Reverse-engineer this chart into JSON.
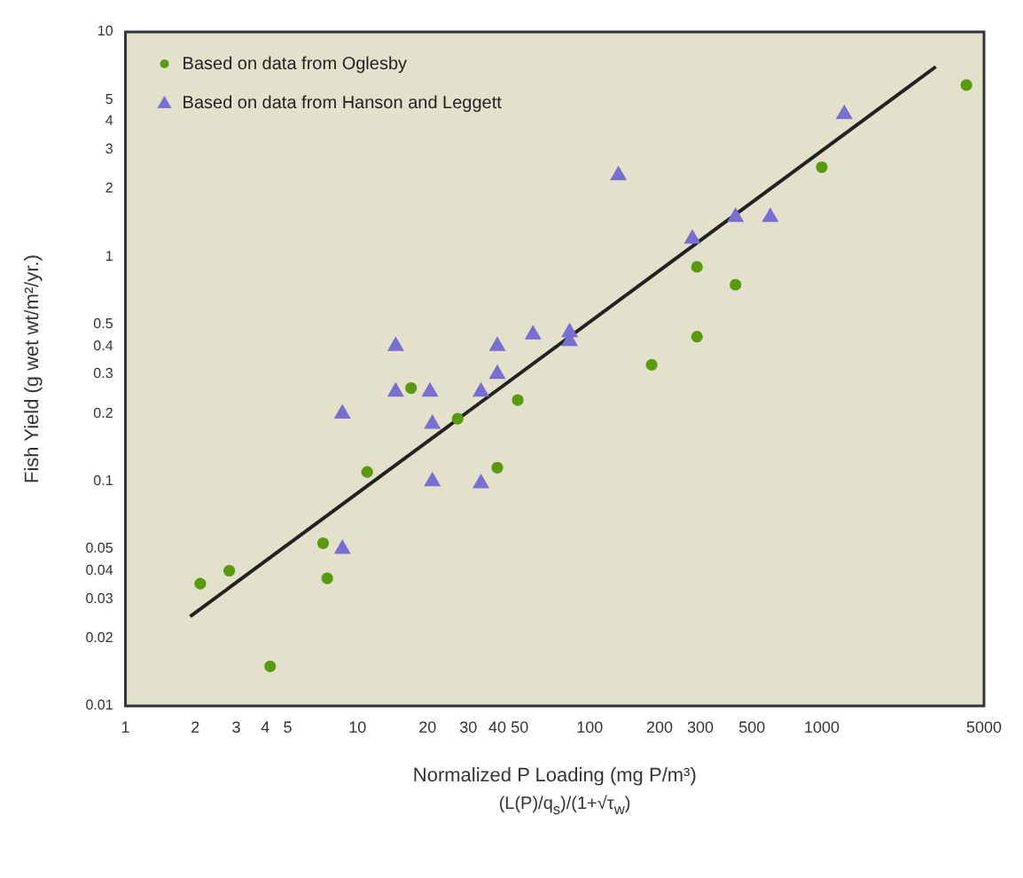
{
  "chart_data": {
    "type": "scatter",
    "ylabel": "Fish Yield (g wet wt/m²/yr.)",
    "xlabel": "Normalized P Loading (mg P/m³)",
    "annotations": [
      "(L(P)/q$_{s}$)/(1+√τ$_{w}$)"
    ],
    "log": "xy",
    "grid": false,
    "legend": "top left",
    "xlim": [
      1,
      5000
    ],
    "xticks": [
      1,
      2,
      3,
      4,
      5,
      10,
      20,
      30,
      40,
      50,
      100,
      200,
      300,
      500,
      1000,
      5000
    ],
    "ylim": [
      0.01,
      10
    ],
    "yticks": [
      0.01,
      0.02,
      0.03,
      0.04,
      0.05,
      0.1,
      0.2,
      0.3,
      0.4,
      0.5,
      1,
      2,
      3,
      4,
      5,
      10
    ],
    "series": [
      {
        "name": "Based on data from Oglesby",
        "color": "#5a9a10",
        "marker": "circle",
        "x": [
          2.1,
          2.8,
          4.2,
          7.1,
          7.4,
          11,
          17,
          27,
          40,
          49,
          185,
          290,
          290,
          425,
          1000,
          4200
        ],
        "values": [
          0.035,
          0.04,
          0.015,
          0.053,
          0.037,
          0.11,
          0.26,
          0.19,
          0.115,
          0.23,
          0.33,
          0.44,
          0.9,
          0.75,
          2.5,
          5.8
        ]
      },
      {
        "name": "Based on data from Hanson and Leggett",
        "color": "#7a6fd0",
        "marker": "triangle",
        "x": [
          8.6,
          8.6,
          14.6,
          14.6,
          20.5,
          21,
          21,
          34,
          34,
          40,
          40,
          57,
          82,
          82,
          133,
          277,
          425,
          600,
          1250
        ],
        "values": [
          0.2,
          0.05,
          0.4,
          0.25,
          0.25,
          0.18,
          0.1,
          0.098,
          0.25,
          0.4,
          0.3,
          0.45,
          0.46,
          0.42,
          2.3,
          1.2,
          1.5,
          1.5,
          4.3
        ]
      },
      {
        "type": "line",
        "color": "#222222",
        "marker": "none",
        "x": [
          1.9,
          3100
        ],
        "values": [
          0.025,
          7
        ]
      }
    ]
  }
}
